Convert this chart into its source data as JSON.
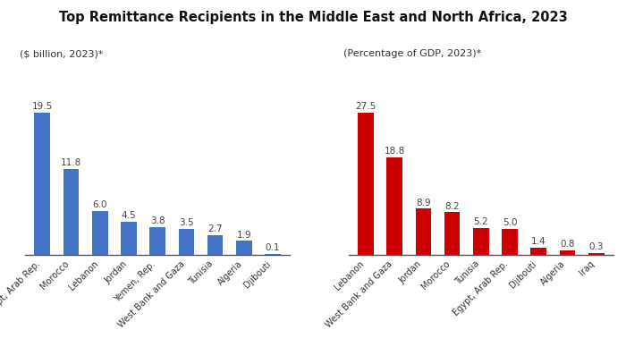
{
  "title": "Top Remittance Recipients in the Middle East and North Africa, 2023",
  "left_subtitle": "($ billion, 2023)*",
  "right_subtitle": "(Percentage of GDP, 2023)*",
  "left_categories": [
    "Egypt, Arab Rep.",
    "Morocco",
    "Lebanon",
    "Jordan",
    "Yemen, Rep.",
    "West Bank and Gaza",
    "Tunisia",
    "Algeria",
    "Djibouti"
  ],
  "left_values": [
    19.5,
    11.8,
    6.0,
    4.5,
    3.8,
    3.5,
    2.7,
    1.9,
    0.1
  ],
  "right_categories": [
    "Lebanon",
    "West Bank and Gaza",
    "Jordan",
    "Morocco",
    "Tunisia",
    "Egypt, Arab Rep.",
    "Djibouti",
    "Algeria",
    "Iraq"
  ],
  "right_values": [
    27.5,
    18.8,
    8.9,
    8.2,
    5.2,
    5.0,
    1.4,
    0.8,
    0.3
  ],
  "left_bar_color": "#4472C4",
  "right_bar_color": "#CC0000",
  "background_color": "#FFFFFF",
  "title_fontsize": 10.5,
  "subtitle_fontsize": 8,
  "tick_fontsize": 7,
  "value_fontsize": 7.5
}
